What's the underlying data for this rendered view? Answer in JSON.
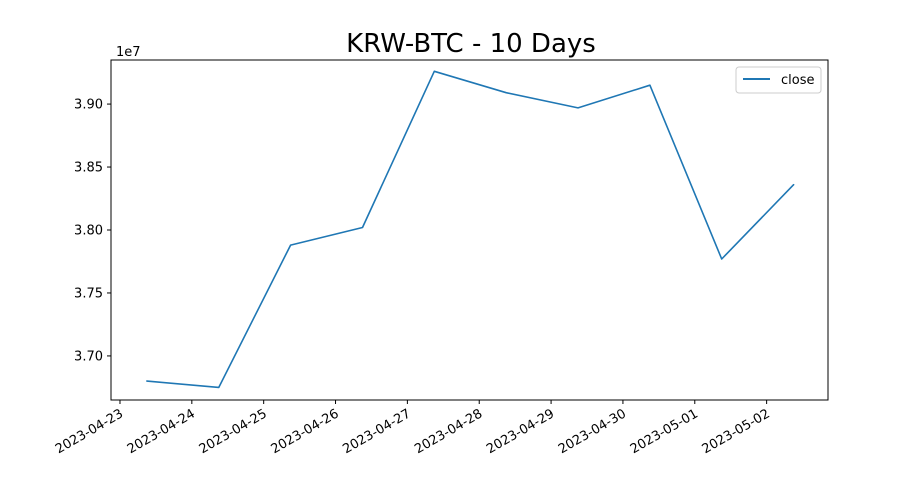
{
  "chart_data": {
    "type": "line",
    "title": "KRW-BTC - 10 Days",
    "xlabel": "",
    "ylabel": "",
    "y_offset_label": "1e7",
    "y_multiplier": 10000000,
    "x_ticks": [
      "2023-04-23",
      "2023-04-24",
      "2023-04-25",
      "2023-04-26",
      "2023-04-27",
      "2023-04-28",
      "2023-04-29",
      "2023-04-30",
      "2023-05-01",
      "2023-05-02"
    ],
    "y_ticks": [
      3.7,
      3.75,
      3.8,
      3.85,
      3.9
    ],
    "y_tick_labels": [
      "3.70",
      "3.75",
      "3.80",
      "3.85",
      "3.90"
    ],
    "xlim": [
      "2023-04-22T21:00",
      "2023-05-02T20:30"
    ],
    "ylim": [
      3.665,
      3.935
    ],
    "grid": false,
    "legend_position": "top-right",
    "series": [
      {
        "name": "close",
        "color": "#1f77b4",
        "x": [
          "2023-04-23T09:00",
          "2023-04-24T09:00",
          "2023-04-25T09:00",
          "2023-04-26T09:00",
          "2023-04-27T09:00",
          "2023-04-28T09:00",
          "2023-04-29T09:00",
          "2023-04-30T09:00",
          "2023-05-01T09:00",
          "2023-05-02T09:00"
        ],
        "values": [
          3.68,
          3.675,
          3.788,
          3.802,
          3.926,
          3.909,
          3.897,
          3.915,
          3.777,
          3.836
        ]
      }
    ]
  }
}
